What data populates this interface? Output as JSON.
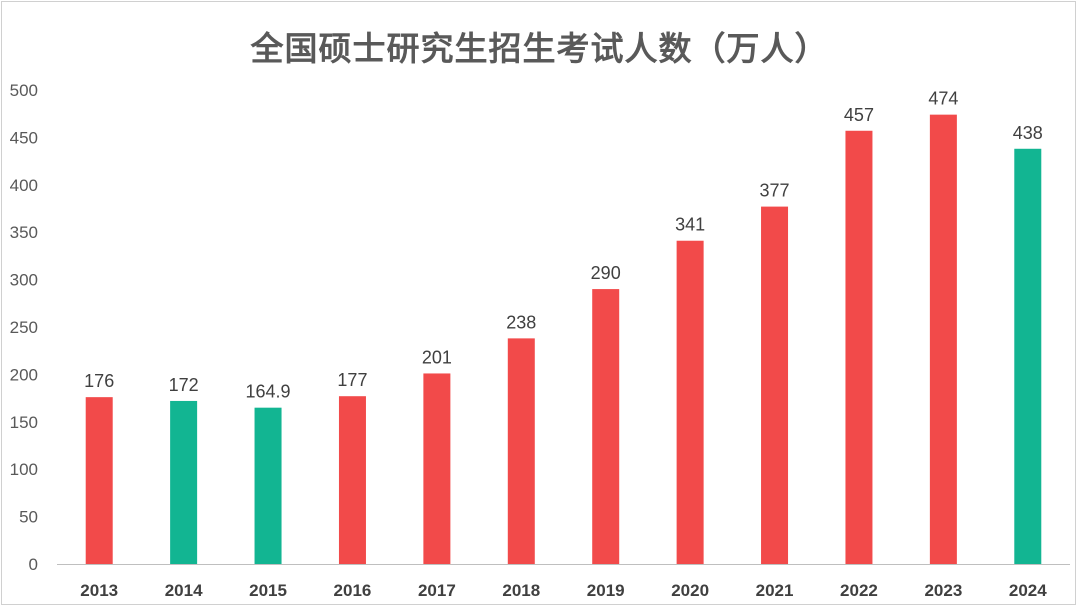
{
  "chart_data": {
    "type": "bar",
    "title": "全国硕士研究生招生考试人数（万人）",
    "xlabel": "",
    "ylabel": "",
    "categories": [
      "2013",
      "2014",
      "2015",
      "2016",
      "2017",
      "2018",
      "2019",
      "2020",
      "2021",
      "2022",
      "2023",
      "2024"
    ],
    "values": [
      176,
      172,
      164.9,
      177,
      201,
      238,
      290,
      341,
      377,
      457,
      474,
      438
    ],
    "data_labels": [
      "176",
      "172",
      "164.9",
      "177",
      "201",
      "238",
      "290",
      "341",
      "377",
      "457",
      "474",
      "438"
    ],
    "ylim": [
      0,
      500
    ],
    "y_ticks": [
      0,
      50,
      100,
      150,
      200,
      250,
      300,
      350,
      400,
      450,
      500
    ],
    "bar_colors": [
      "#f24a4a",
      "#12b592",
      "#12b592",
      "#f24a4a",
      "#f24a4a",
      "#f24a4a",
      "#f24a4a",
      "#f24a4a",
      "#f24a4a",
      "#f24a4a",
      "#f24a4a",
      "#12b592"
    ],
    "colors": {
      "increase": "#f24a4a",
      "decrease": "#12b592",
      "axis": "#bfbfbf",
      "text": "#595959"
    },
    "grid": false,
    "legend": "none"
  }
}
